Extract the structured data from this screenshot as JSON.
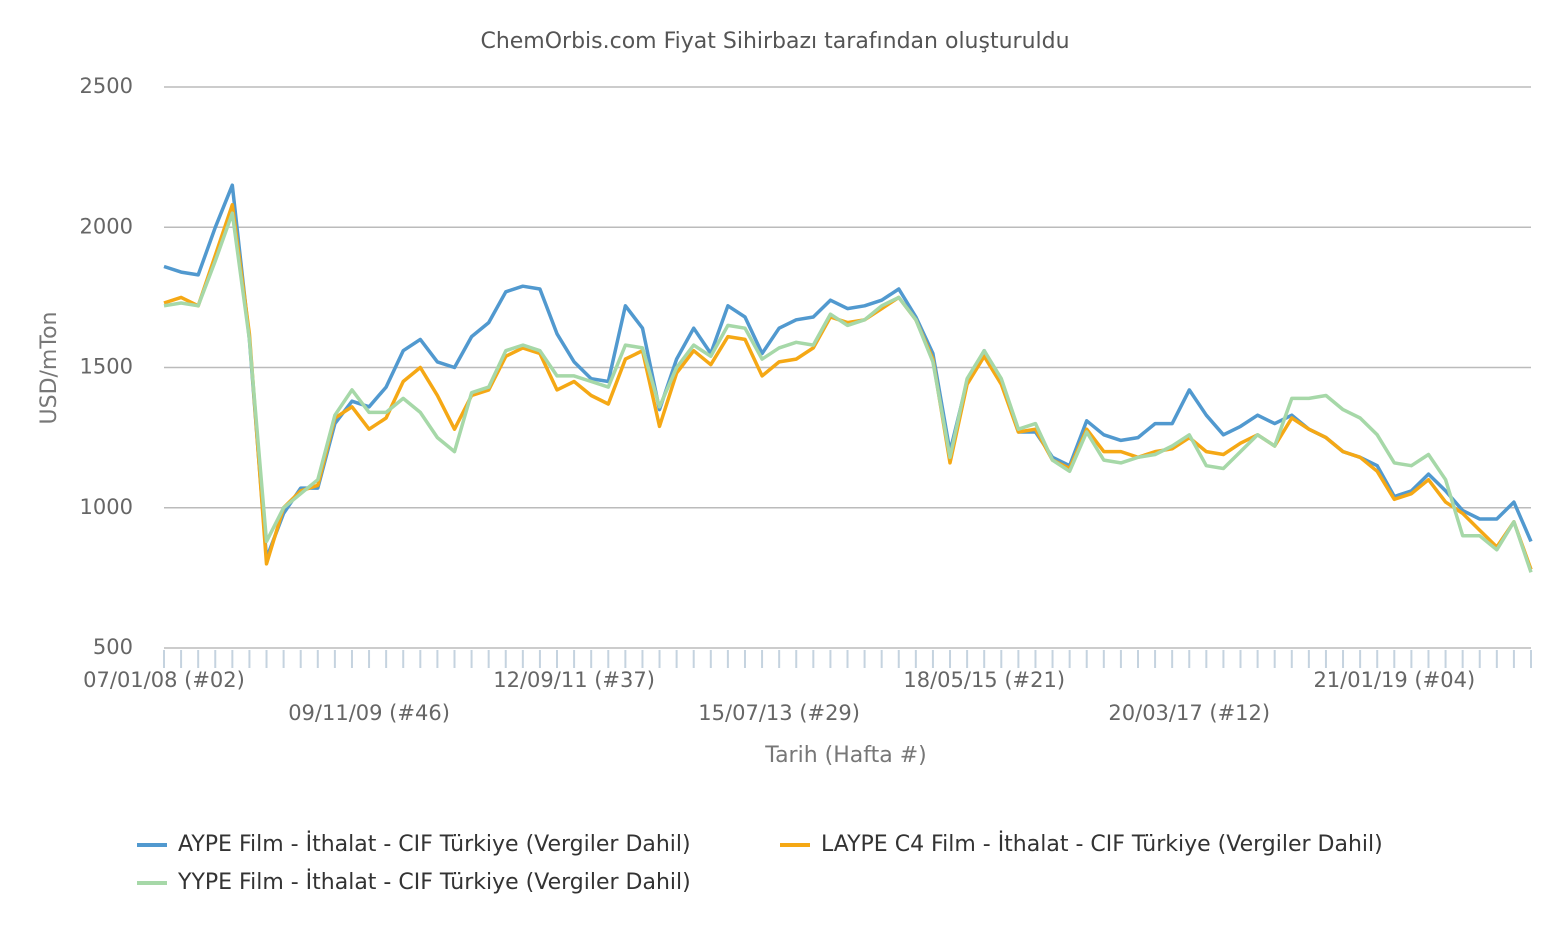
{
  "chart_data": {
    "type": "line",
    "title": "ChemOrbis.com Fiyat Sihirbazı tarafından oluşturuldu",
    "ylabel": "USD/mTon",
    "xlabel": "Tarih (Hafta #)",
    "categories": [
      "07/01/08 (#02)",
      null,
      null,
      null,
      null,
      null,
      null,
      null,
      null,
      null,
      null,
      null,
      "09/11/09 (#46)",
      null,
      null,
      null,
      null,
      null,
      null,
      null,
      null,
      null,
      null,
      null,
      "12/09/11 (#37)",
      null,
      null,
      null,
      null,
      null,
      null,
      null,
      null,
      null,
      null,
      null,
      "15/07/13 (#29)",
      null,
      null,
      null,
      null,
      null,
      null,
      null,
      null,
      null,
      null,
      null,
      "18/05/15 (#21)",
      null,
      null,
      null,
      null,
      null,
      null,
      null,
      null,
      null,
      null,
      null,
      "20/03/17 (#12)",
      null,
      null,
      null,
      null,
      null,
      null,
      null,
      null,
      null,
      null,
      null,
      "21/01/19 (#04)",
      null,
      null,
      null,
      null,
      null,
      null,
      null,
      null
    ],
    "series": [
      {
        "name": "AYPE Film - İthalat - CIF Türkiye (Vergiler Dahil)",
        "color": "#5199cf",
        "values": [
          1860,
          1840,
          1830,
          2000,
          2150,
          1600,
          820,
          980,
          1070,
          1070,
          1300,
          1380,
          1360,
          1430,
          1560,
          1600,
          1520,
          1500,
          1610,
          1660,
          1770,
          1790,
          1780,
          1620,
          1520,
          1460,
          1450,
          1720,
          1640,
          1350,
          1530,
          1640,
          1550,
          1720,
          1680,
          1550,
          1640,
          1670,
          1680,
          1740,
          1710,
          1720,
          1740,
          1780,
          1680,
          1550,
          1200,
          1450,
          1560,
          1450,
          1270,
          1270,
          1180,
          1150,
          1310,
          1260,
          1240,
          1250,
          1300,
          1300,
          1420,
          1330,
          1260,
          1290,
          1330,
          1300,
          1330,
          1280,
          1250,
          1200,
          1180,
          1150,
          1040,
          1060,
          1120,
          1060,
          990,
          960,
          960,
          1020,
          880
        ]
      },
      {
        "name": "LAYPE C4 Film - İthalat - CIF Türkiye (Vergiler Dahil)",
        "color": "#f5a815",
        "values": [
          1730,
          1750,
          1720,
          1900,
          2080,
          1620,
          800,
          1000,
          1060,
          1080,
          1320,
          1360,
          1280,
          1320,
          1450,
          1500,
          1400,
          1280,
          1400,
          1420,
          1540,
          1570,
          1550,
          1420,
          1450,
          1400,
          1370,
          1530,
          1560,
          1290,
          1480,
          1560,
          1510,
          1610,
          1600,
          1470,
          1520,
          1530,
          1570,
          1680,
          1660,
          1670,
          1710,
          1750,
          1670,
          1530,
          1160,
          1440,
          1540,
          1440,
          1270,
          1280,
          1170,
          1140,
          1280,
          1200,
          1200,
          1180,
          1200,
          1210,
          1250,
          1200,
          1190,
          1230,
          1260,
          1220,
          1320,
          1280,
          1250,
          1200,
          1180,
          1130,
          1030,
          1050,
          1100,
          1020,
          980,
          920,
          860,
          950,
          780
        ]
      },
      {
        "name": "YYPE Film - İthalat - CIF Türkiye (Vergiler Dahil)",
        "color": "#a6d8a8",
        "values": [
          1720,
          1730,
          1720,
          1880,
          2050,
          1600,
          880,
          1000,
          1050,
          1100,
          1330,
          1420,
          1340,
          1340,
          1390,
          1340,
          1250,
          1200,
          1410,
          1430,
          1560,
          1580,
          1560,
          1470,
          1470,
          1450,
          1430,
          1580,
          1570,
          1360,
          1500,
          1580,
          1540,
          1650,
          1640,
          1530,
          1570,
          1590,
          1580,
          1690,
          1650,
          1670,
          1720,
          1750,
          1670,
          1520,
          1180,
          1460,
          1560,
          1460,
          1280,
          1300,
          1170,
          1130,
          1270,
          1170,
          1160,
          1180,
          1190,
          1220,
          1260,
          1150,
          1140,
          1200,
          1260,
          1220,
          1390,
          1390,
          1400,
          1350,
          1320,
          1260,
          1160,
          1150,
          1190,
          1100,
          900,
          900,
          850,
          950,
          770
        ]
      }
    ],
    "ylim": [
      500,
      2500
    ],
    "yticks": [
      500,
      1000,
      1500,
      2000,
      2500
    ],
    "grid": true
  }
}
